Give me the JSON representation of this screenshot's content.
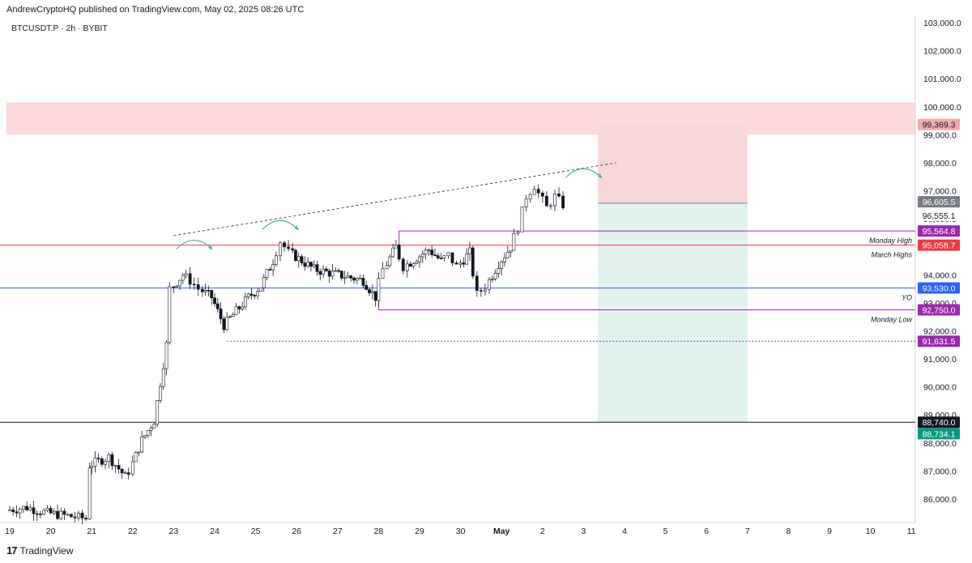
{
  "header": {
    "published": "AndrewCryptoHQ published on TradingView.com, May 02, 2025 08:26 UTC",
    "symbol": "BTCUSDT.P · 2h · BYBIT"
  },
  "footer": {
    "brand": "TradingView",
    "logo_glyph": "17"
  },
  "chart_data": {
    "type": "candlestick",
    "x_ticks": [
      "19",
      "20",
      "21",
      "22",
      "23",
      "24",
      "25",
      "26",
      "27",
      "28",
      "29",
      "30",
      "May",
      "2",
      "3",
      "4",
      "5",
      "6",
      "7",
      "8",
      "9",
      "10",
      "11"
    ],
    "y_ticks": [
      86000,
      87000,
      88000,
      89000,
      90000,
      91000,
      92000,
      93000,
      94000,
      95000,
      96000,
      97000,
      98000,
      99000,
      100000,
      101000,
      102000,
      103000
    ],
    "y_tick_labels": [
      "86,000.0",
      "87,000.0",
      "88,000.0",
      "89,000.0",
      "90,000.0",
      "91,000.0",
      "92,000.0",
      "93,000.0",
      "94,000.0",
      "95,000.0",
      "96,000.0",
      "97,000.0",
      "98,000.0",
      "99,000.0",
      "100,000.0",
      "101,000.0",
      "102,000.0",
      "103,000.0"
    ],
    "ylim": [
      85300,
      103200
    ],
    "xlim": [
      19,
      11.1
    ],
    "price_path": [
      [
        19.0,
        85600
      ],
      [
        19.5,
        85700
      ],
      [
        20.0,
        85500
      ],
      [
        20.5,
        85400
      ],
      [
        20.95,
        85300
      ],
      [
        21.0,
        87200
      ],
      [
        21.5,
        87500
      ],
      [
        21.9,
        86800
      ],
      [
        22.0,
        87000
      ],
      [
        22.3,
        88100
      ],
      [
        22.6,
        88800
      ],
      [
        22.9,
        91500
      ],
      [
        23.0,
        93500
      ],
      [
        23.3,
        94000
      ],
      [
        23.5,
        93800
      ],
      [
        23.7,
        93500
      ],
      [
        24.0,
        93200
      ],
      [
        24.3,
        92200
      ],
      [
        24.6,
        92700
      ],
      [
        24.9,
        93200
      ],
      [
        25.2,
        93600
      ],
      [
        25.5,
        94500
      ],
      [
        25.7,
        95200
      ],
      [
        25.9,
        94800
      ],
      [
        26.2,
        94500
      ],
      [
        26.5,
        94200
      ],
      [
        26.8,
        94100
      ],
      [
        27.1,
        94000
      ],
      [
        27.4,
        93900
      ],
      [
        27.7,
        93800
      ],
      [
        28.0,
        93200
      ],
      [
        28.2,
        94200
      ],
      [
        28.5,
        95000
      ],
      [
        28.7,
        94300
      ],
      [
        29.0,
        94600
      ],
      [
        29.3,
        94900
      ],
      [
        29.6,
        94500
      ],
      [
        29.8,
        94700
      ],
      [
        30.0,
        94300
      ],
      [
        30.3,
        94800
      ],
      [
        30.5,
        93300
      ],
      [
        30.7,
        93600
      ],
      [
        31.0,
        94400
      ],
      [
        31.3,
        95000
      ],
      [
        31.5,
        95700
      ],
      [
        31.7,
        96800
      ],
      [
        31.9,
        97200
      ],
      [
        32.0,
        96900
      ],
      [
        32.2,
        96400
      ],
      [
        32.4,
        96800
      ],
      [
        32.6,
        96500
      ]
    ],
    "levels": [
      {
        "name": "Monday High",
        "value": 95564.8,
        "label": "95,564.8",
        "color": "#9c27b0",
        "text": "Monday High"
      },
      {
        "name": "March Highs",
        "value": 95058.7,
        "label": "95,058.7",
        "color": "#f23645",
        "text": "March Highs"
      },
      {
        "name": "YO",
        "value": 93530.0,
        "label": "93,530.0",
        "color": "#2962ff",
        "text": "YO"
      },
      {
        "name": "Monday Low",
        "value": 92750.0,
        "label": "92,750.0",
        "color": "#9c27b0",
        "text": "Monday Low"
      },
      {
        "name": "Level 91631.5",
        "value": 91631.5,
        "label": "91,631.5",
        "color": "#9c27b0",
        "text": ""
      },
      {
        "name": "Level 88740",
        "value": 88740.0,
        "label": "88,740.0",
        "color": "#131722",
        "text": ""
      }
    ],
    "price_labels": [
      {
        "label": "99,369.3",
        "value": 99369.3,
        "color": "#f7a9a9",
        "text_color": "#131722"
      },
      {
        "label": "96,605.5",
        "value": 96605.5,
        "color": "#787b86",
        "text_color": "#ffffff"
      },
      {
        "label": "96,555.1",
        "value": 96555.1,
        "color": "#ffffff",
        "text_color": "#131722"
      },
      {
        "label": "88,734.1",
        "value": 88734.1,
        "color": "#089981",
        "text_color": "#ffffff"
      }
    ],
    "supply_zone": {
      "top": 100150,
      "bottom": 99000,
      "color": "#fdd9db"
    },
    "position": {
      "entry": 96555.1,
      "target": 99369.3,
      "stop": 88734.1,
      "start_day": 33.35,
      "end_day": 37.0,
      "profit_color": "#f9d7d8",
      "loss_color": "#e1f3ef"
    },
    "trendline": {
      "from": [
        23.0,
        95400
      ],
      "to": [
        33.8,
        98000
      ]
    },
    "swing_highs": [
      [
        23.5,
        95150
      ],
      [
        25.6,
        95850
      ],
      [
        33.0,
        97700
      ]
    ]
  }
}
